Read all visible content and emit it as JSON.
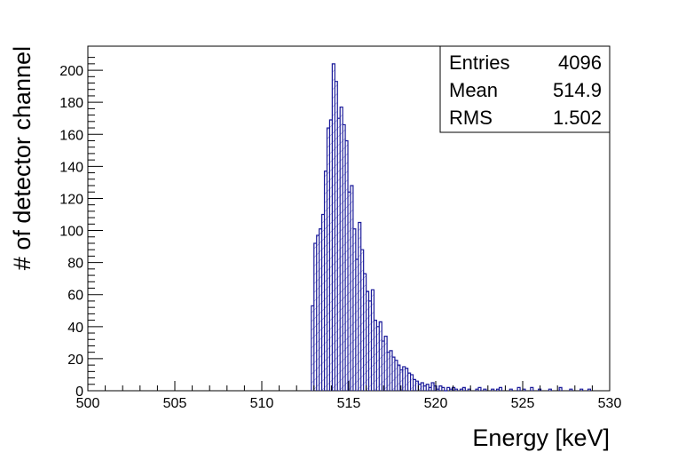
{
  "chart_data": {
    "type": "histogram",
    "xlabel": "Energy [keV]",
    "ylabel": "# of detector channel",
    "xlim": [
      500,
      530
    ],
    "ylim": [
      0,
      215
    ],
    "x_ticks": [
      "500",
      "505",
      "510",
      "515",
      "520",
      "525",
      "530"
    ],
    "y_ticks": [
      "0",
      "20",
      "40",
      "60",
      "80",
      "100",
      "120",
      "140",
      "160",
      "180",
      "200"
    ],
    "grid": false,
    "fill": "hatched",
    "line_color": "#1a1a9a",
    "hatch_color": "#8a8ad0",
    "bin_width": 0.15,
    "bins": [
      {
        "x": 512.85,
        "y": 53
      },
      {
        "x": 513.0,
        "y": 92
      },
      {
        "x": 513.15,
        "y": 97
      },
      {
        "x": 513.3,
        "y": 101
      },
      {
        "x": 513.45,
        "y": 110
      },
      {
        "x": 513.6,
        "y": 137
      },
      {
        "x": 513.75,
        "y": 164
      },
      {
        "x": 513.9,
        "y": 169
      },
      {
        "x": 514.05,
        "y": 204
      },
      {
        "x": 514.2,
        "y": 193
      },
      {
        "x": 514.35,
        "y": 170
      },
      {
        "x": 514.5,
        "y": 177
      },
      {
        "x": 514.65,
        "y": 166
      },
      {
        "x": 514.8,
        "y": 156
      },
      {
        "x": 514.95,
        "y": 124
      },
      {
        "x": 515.1,
        "y": 128
      },
      {
        "x": 515.25,
        "y": 101
      },
      {
        "x": 515.4,
        "y": 82
      },
      {
        "x": 515.55,
        "y": 105
      },
      {
        "x": 515.7,
        "y": 88
      },
      {
        "x": 515.85,
        "y": 73
      },
      {
        "x": 516.0,
        "y": 62
      },
      {
        "x": 516.15,
        "y": 56
      },
      {
        "x": 516.3,
        "y": 63
      },
      {
        "x": 516.45,
        "y": 44
      },
      {
        "x": 516.6,
        "y": 40
      },
      {
        "x": 516.75,
        "y": 43
      },
      {
        "x": 516.9,
        "y": 31
      },
      {
        "x": 517.05,
        "y": 34
      },
      {
        "x": 517.2,
        "y": 24
      },
      {
        "x": 517.35,
        "y": 25
      },
      {
        "x": 517.5,
        "y": 21
      },
      {
        "x": 517.65,
        "y": 19
      },
      {
        "x": 517.8,
        "y": 16
      },
      {
        "x": 517.95,
        "y": 13
      },
      {
        "x": 518.1,
        "y": 15
      },
      {
        "x": 518.25,
        "y": 14
      },
      {
        "x": 518.4,
        "y": 11
      },
      {
        "x": 518.55,
        "y": 10
      },
      {
        "x": 518.7,
        "y": 7
      },
      {
        "x": 518.85,
        "y": 6
      },
      {
        "x": 519.0,
        "y": 4
      },
      {
        "x": 519.15,
        "y": 5
      },
      {
        "x": 519.3,
        "y": 3
      },
      {
        "x": 519.45,
        "y": 4
      },
      {
        "x": 519.6,
        "y": 2
      },
      {
        "x": 519.75,
        "y": 5
      },
      {
        "x": 519.9,
        "y": 3
      },
      {
        "x": 520.05,
        "y": 1
      },
      {
        "x": 520.2,
        "y": 3
      },
      {
        "x": 520.35,
        "y": 2
      },
      {
        "x": 520.5,
        "y": 0
      },
      {
        "x": 520.65,
        "y": 2
      },
      {
        "x": 520.8,
        "y": 1
      },
      {
        "x": 520.95,
        "y": 2
      },
      {
        "x": 521.1,
        "y": 1
      },
      {
        "x": 521.4,
        "y": 1
      },
      {
        "x": 521.55,
        "y": 2
      },
      {
        "x": 521.85,
        "y": 1
      },
      {
        "x": 522.3,
        "y": 1
      },
      {
        "x": 522.45,
        "y": 2
      },
      {
        "x": 522.75,
        "y": 1
      },
      {
        "x": 523.2,
        "y": 1
      },
      {
        "x": 523.5,
        "y": 1
      },
      {
        "x": 523.65,
        "y": 2
      },
      {
        "x": 524.25,
        "y": 1
      },
      {
        "x": 524.7,
        "y": 2
      },
      {
        "x": 525.0,
        "y": 1
      },
      {
        "x": 525.45,
        "y": 2
      },
      {
        "x": 525.9,
        "y": 1
      },
      {
        "x": 526.5,
        "y": 1
      },
      {
        "x": 527.1,
        "y": 2
      },
      {
        "x": 527.7,
        "y": 1
      },
      {
        "x": 528.3,
        "y": 1
      },
      {
        "x": 528.75,
        "y": 1
      }
    ],
    "stats": {
      "entries_label": "Entries",
      "entries_value": "4096",
      "mean_label": "Mean",
      "mean_value": "514.9",
      "rms_label": "RMS",
      "rms_value": "1.502"
    }
  }
}
